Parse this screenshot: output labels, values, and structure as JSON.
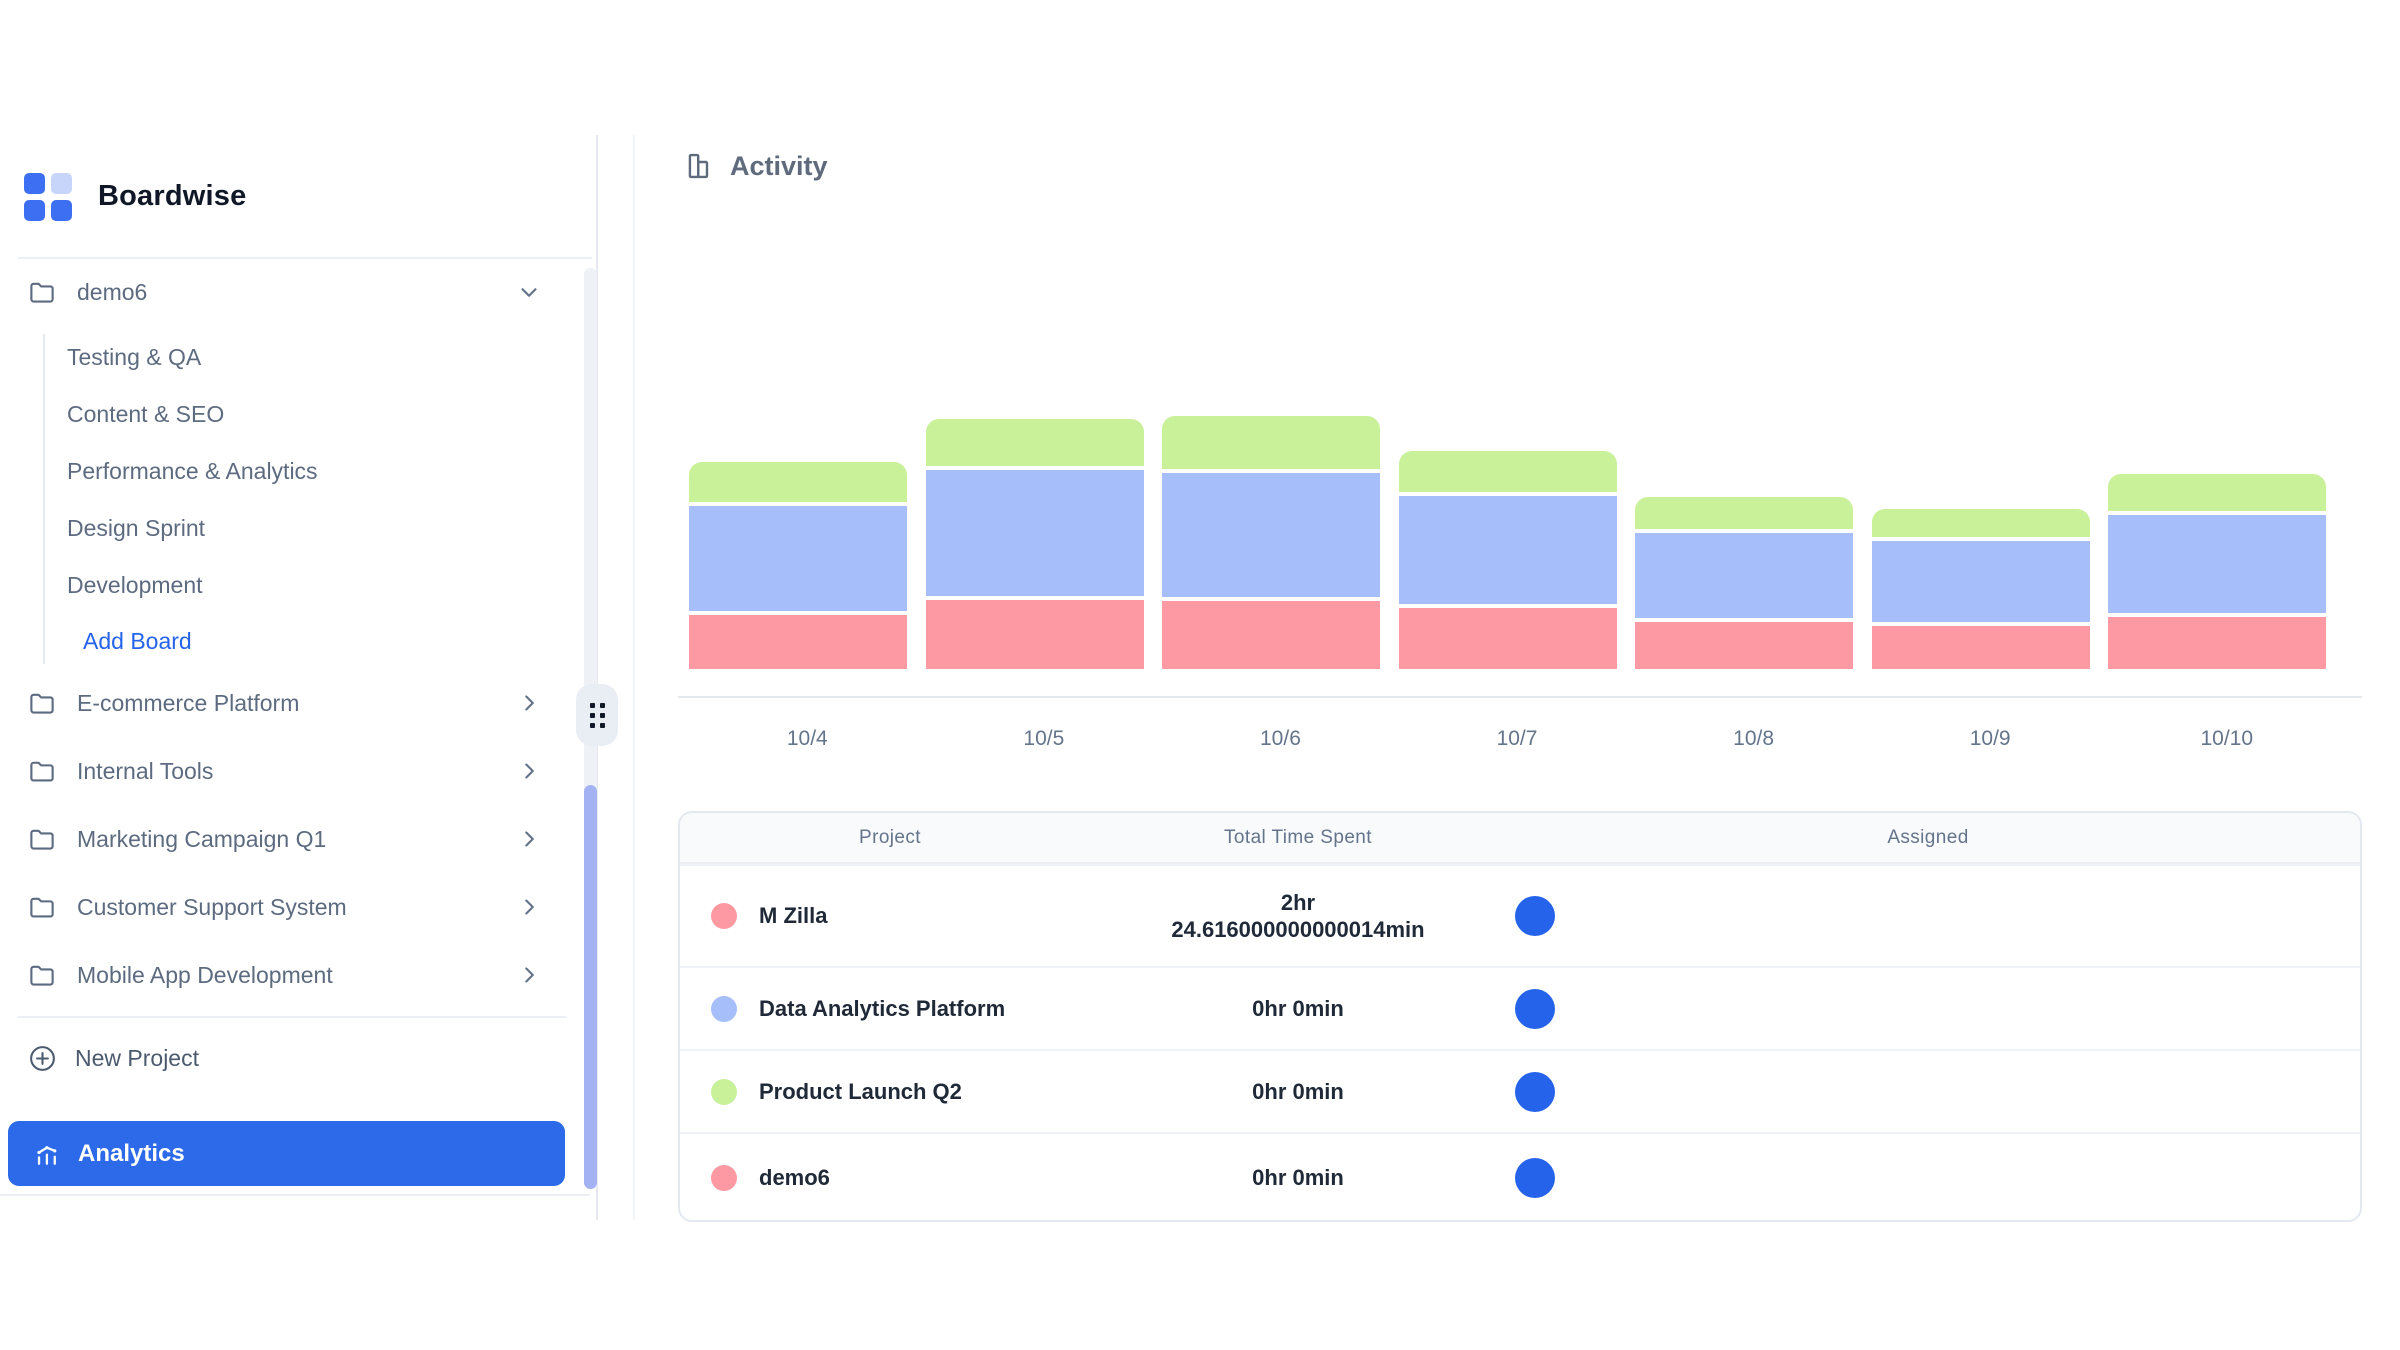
{
  "colors": {
    "accent_blue": "#2d6ae9",
    "link_blue": "#2563eb",
    "assigned_avatar_blue": "#2563eb",
    "bar_pink": "#fc99a3",
    "bar_blue": "#a6bef9",
    "bar_green": "#c9f19a",
    "scroll_thumb": "#a3b2f3",
    "logo_blue": "#3d6ff2",
    "logo_light_blue": "#c7d5fb",
    "sidebar_text": "#5d6b80",
    "border": "#e4e9f0"
  },
  "sidebar": {
    "brand": "Boardwise",
    "active_project": {
      "label": "demo6"
    },
    "boards": [
      "Testing & QA",
      "Content & SEO",
      "Performance & Analytics",
      "Design Sprint",
      "Development"
    ],
    "add_board_label": "Add Board",
    "projects": [
      "E-commerce Platform",
      "Internal Tools",
      "Marketing Campaign Q1",
      "Customer Support System",
      "Mobile App Development"
    ],
    "new_project_label": "New Project",
    "analytics_label": "Analytics"
  },
  "main": {
    "section_title": "Activity",
    "table": {
      "columns": [
        "Project",
        "Total Time Spent",
        "Assigned"
      ],
      "rows": [
        {
          "project": "M Zilla",
          "dot_style": "background:#fc99a3",
          "time_lines": [
            "2hr",
            "24.616000000000014min"
          ]
        },
        {
          "project": "Data Analytics Platform",
          "dot_style": "background:#a6bef9",
          "time_lines": [
            "0hr 0min"
          ]
        },
        {
          "project": "Product Launch Q2",
          "dot_style": "background:#c9f19a",
          "time_lines": [
            "0hr 0min"
          ]
        },
        {
          "project": "demo6",
          "dot_style": "background:#fc99a3",
          "time_lines": [
            "0hr 0min"
          ]
        }
      ]
    }
  },
  "chart_data": {
    "type": "bar",
    "stacked": true,
    "title": "Activity",
    "categories": [
      "10/4",
      "10/5",
      "10/6",
      "10/7",
      "10/8",
      "10/9",
      "10/10"
    ],
    "series": [
      {
        "name": "M Zilla",
        "color": "#fc99a3",
        "values": [
          54,
          69,
          68,
          61,
          47,
          43,
          52
        ]
      },
      {
        "name": "Data Analytics Platform",
        "color": "#a6bef9",
        "values": [
          105,
          126,
          124,
          108,
          85,
          81,
          98
        ]
      },
      {
        "name": "Product Launch Q2",
        "color": "#c9f19a",
        "values": [
          40,
          47,
          53,
          41,
          32,
          28,
          37
        ]
      }
    ],
    "stack_order": "first series at bottom of stack",
    "value_unit": "relative bar-segment height in px (chart shows no y-axis labels)",
    "xlabel": "",
    "ylabel": "",
    "grid": false,
    "legend": false
  }
}
